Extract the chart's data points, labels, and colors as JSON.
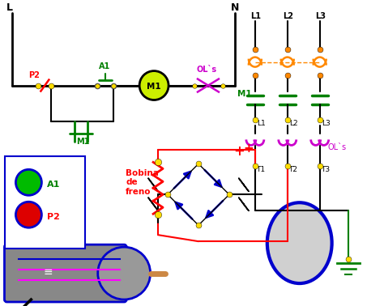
{
  "bg_color": "#ffffff",
  "bk": "#000000",
  "gr": "#008000",
  "rd": "#ff0000",
  "mg": "#ff00ff",
  "bl": "#0000cd",
  "og": "#ff8800",
  "yw": "#ffdd00",
  "nd": "#ffdd00",
  "pu": "#cc00cc",
  "L_label": "L",
  "N_label": "N",
  "P2_label": "P2",
  "A1_label": "A1",
  "M1_label": "M1",
  "OLs_label": "OL`s",
  "Bobina_label": "Bobina\nde\nfreno",
  "A1_legend": "A1",
  "P2_legend": "P2"
}
